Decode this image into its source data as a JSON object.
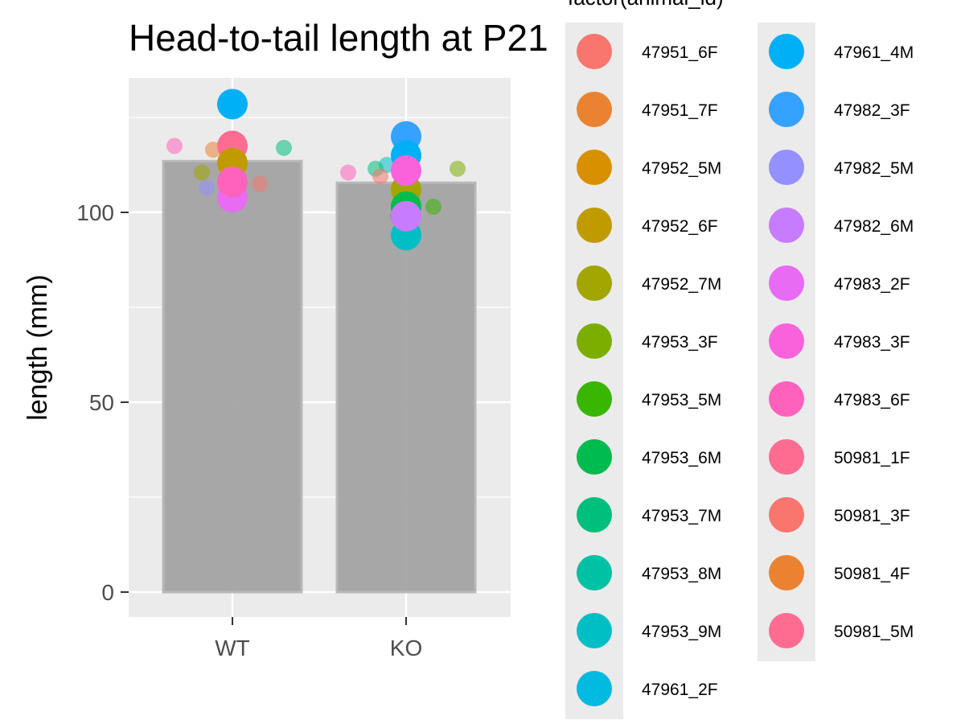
{
  "chart_data": {
    "type": "bar",
    "title": "Head-to-tail length at P21",
    "xlabel": "",
    "ylabel": "length (mm)",
    "categories": [
      "WT",
      "KO"
    ],
    "bar_means": [
      113.5,
      107.8
    ],
    "ylim": [
      -6,
      135
    ],
    "yticks": [
      0,
      50,
      100
    ],
    "grid": true,
    "legend": {
      "title": "factor(animal_id)",
      "placement": "right",
      "columns": 2,
      "entries": [
        {
          "label": "47951_6F",
          "color": "#F8766D"
        },
        {
          "label": "47951_7F",
          "color": "#EA8331"
        },
        {
          "label": "47952_5M",
          "color": "#D89000"
        },
        {
          "label": "47952_6F",
          "color": "#C09B00"
        },
        {
          "label": "47952_7M",
          "color": "#A3A500"
        },
        {
          "label": "47953_3F",
          "color": "#7CAE00"
        },
        {
          "label": "47953_5M",
          "color": "#39B600"
        },
        {
          "label": "47953_6M",
          "color": "#00BB4E"
        },
        {
          "label": "47953_7M",
          "color": "#00BF7D"
        },
        {
          "label": "47953_8M",
          "color": "#00C1A3"
        },
        {
          "label": "47953_9M",
          "color": "#00BFC4"
        },
        {
          "label": "47961_2F",
          "color": "#00BAE0"
        },
        {
          "label": "47961_4M",
          "color": "#00B0F6"
        },
        {
          "label": "47982_3F",
          "color": "#35A2FF"
        },
        {
          "label": "47982_5M",
          "color": "#9590FF"
        },
        {
          "label": "47982_6M",
          "color": "#C77CFF"
        },
        {
          "label": "47983_2F",
          "color": "#E76BF3"
        },
        {
          "label": "47983_3F",
          "color": "#FA62DB"
        },
        {
          "label": "47983_6F",
          "color": "#FF62BC"
        },
        {
          "label": "50981_1F",
          "color": "#FF6C91"
        },
        {
          "label": "50981_3F",
          "color": "#F8766D"
        },
        {
          "label": "50981_4F",
          "color": "#EA8331"
        },
        {
          "label": "50981_5M",
          "color": "#FF6C91"
        }
      ]
    },
    "points": {
      "WT": [
        {
          "value": 117.5,
          "color": "#FF62BC",
          "size": "small"
        },
        {
          "value": 116.5,
          "color": "#EA8331",
          "size": "small"
        },
        {
          "value": 117.0,
          "color": "#00BF7D",
          "size": "small"
        },
        {
          "value": 110.5,
          "color": "#A3A500",
          "size": "small"
        },
        {
          "value": 106.5,
          "color": "#9590FF",
          "size": "small"
        },
        {
          "value": 107.5,
          "color": "#F8766D",
          "size": "small"
        },
        {
          "value": 128.5,
          "color": "#00B0F6",
          "size": "large"
        },
        {
          "value": 117.5,
          "color": "#FF6C91",
          "size": "large"
        },
        {
          "value": 113.0,
          "color": "#C09B00",
          "size": "large"
        },
        {
          "value": 104.0,
          "color": "#E76BF3",
          "size": "large"
        },
        {
          "value": 108.0,
          "color": "#FF62BC",
          "size": "large"
        }
      ],
      "KO": [
        {
          "value": 110.5,
          "color": "#FF62BC",
          "size": "small"
        },
        {
          "value": 112.5,
          "color": "#00BFC4",
          "size": "small"
        },
        {
          "value": 111.5,
          "color": "#7CAE00",
          "size": "small"
        },
        {
          "value": 111.5,
          "color": "#00BF7D",
          "size": "small"
        },
        {
          "value": 109.5,
          "color": "#F8766D",
          "size": "small"
        },
        {
          "value": 101.5,
          "color": "#39B600",
          "size": "small"
        },
        {
          "value": 99.0,
          "color": "#39B600",
          "size": "small"
        },
        {
          "value": 120.0,
          "color": "#35A2FF",
          "size": "large"
        },
        {
          "value": 115.0,
          "color": "#00B0F6",
          "size": "large"
        },
        {
          "value": 106.0,
          "color": "#A3A500",
          "size": "large"
        },
        {
          "value": 101.5,
          "color": "#00BB4E",
          "size": "large"
        },
        {
          "value": 94.0,
          "color": "#00BFC4",
          "size": "large"
        },
        {
          "value": 99.0,
          "color": "#C77CFF",
          "size": "large"
        },
        {
          "value": 111.0,
          "color": "#FA62DB",
          "size": "large"
        }
      ]
    }
  },
  "colors": {
    "panel": "#EBEBEB",
    "grid_major": "#FFFFFF",
    "bar_fill": "#A3A3A3",
    "bar_stroke": "#B8B8B8"
  }
}
